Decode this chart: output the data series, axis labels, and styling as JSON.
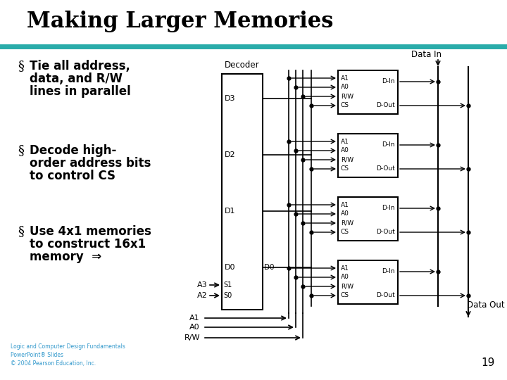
{
  "title": "Making Larger Memories",
  "title_color": "#000000",
  "title_fontsize": 22,
  "title_font": "serif",
  "teal_bar_color": "#2aacaa",
  "bg_color": "#ffffff",
  "bullet_points": [
    [
      "Tie all address,",
      "data, and R/W",
      "lines in parallel"
    ],
    [
      "Decode high-",
      "order address bits",
      "to control CS"
    ],
    [
      "Use 4x1 memories",
      "to construct 16x1",
      "memory  ⇒"
    ]
  ],
  "bullet_fontsize": 12,
  "footer_text": "Logic and Computer Design Fundamentals\nPowerPoint® Slides\n© 2004 Pearson Education, Inc.",
  "page_number": "19",
  "decoder_label": "Decoder",
  "data_in_label": "Data In",
  "data_out_label": "Data Out",
  "memory_labels": [
    "D3",
    "D2",
    "D1",
    "D0"
  ],
  "chip_pin_labels_left": [
    "A1",
    "A0",
    "R/W",
    "CS"
  ],
  "chip_pin_labels_right_top": "D-In",
  "chip_pin_labels_right_bot": "D-Out",
  "decoder_input_rows": [
    [
      "A3",
      "S1"
    ],
    [
      "A2",
      "S0"
    ]
  ],
  "bus_input_labels": [
    "A1",
    "A0",
    "R/W"
  ]
}
